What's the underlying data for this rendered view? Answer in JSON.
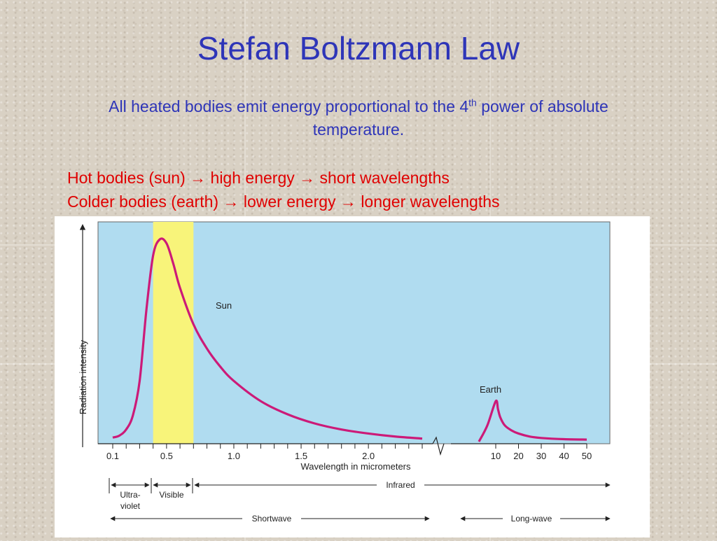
{
  "slide": {
    "title": "Stefan Boltzmann Law",
    "subtitle_pre": "All heated bodies emit energy proportional to the 4",
    "subtitle_sup": "th",
    "subtitle_post": " power of absolute temperature.",
    "bullets": [
      {
        "parts": [
          "Hot bodies (sun)",
          "high energy",
          "short wavelengths"
        ]
      },
      {
        "parts": [
          "Colder bodies (earth)",
          "lower energy",
          "longer wavelengths"
        ]
      }
    ],
    "arrow_glyph": "→"
  },
  "colors": {
    "title_text": "#2e35b8",
    "bullet_text": "#e00000",
    "plot_background": "#b0dcf0",
    "visible_band": "#f8f47a",
    "curve": "#cc1a78"
  },
  "chart_data": {
    "type": "line",
    "title": "",
    "xlabel": "Wavelength in micrometers",
    "ylabel": "Radiation intensity",
    "x_axis": "broken: 0.1–2.4 then 10–50",
    "grid": false,
    "shortwave_ticks": [
      "0.1",
      "0.5",
      "1.0",
      "1.5",
      "2.0"
    ],
    "longwave_ticks": [
      "10",
      "20",
      "30",
      "40",
      "50"
    ],
    "series": [
      {
        "name": "Sun",
        "x": [
          0.1,
          0.15,
          0.2,
          0.25,
          0.3,
          0.35,
          0.4,
          0.45,
          0.5,
          0.55,
          0.6,
          0.7,
          0.8,
          0.9,
          1.0,
          1.2,
          1.4,
          1.6,
          1.8,
          2.0,
          2.2,
          2.4
        ],
        "y": [
          0.02,
          0.03,
          0.06,
          0.13,
          0.3,
          0.65,
          0.92,
          1.0,
          0.98,
          0.88,
          0.76,
          0.58,
          0.46,
          0.37,
          0.3,
          0.2,
          0.135,
          0.09,
          0.06,
          0.04,
          0.025,
          0.015
        ]
      },
      {
        "name": "Earth",
        "x": [
          8,
          9,
          10,
          11,
          12,
          14,
          17,
          20,
          25,
          30,
          40,
          50
        ],
        "y": [
          0.0,
          0.08,
          0.2,
          0.16,
          0.12,
          0.08,
          0.055,
          0.04,
          0.025,
          0.018,
          0.012,
          0.01
        ]
      }
    ],
    "visible_band_um": [
      0.4,
      0.7
    ],
    "bands": [
      {
        "label": "Ultra-",
        "label2": "violet"
      },
      {
        "label": "Visible"
      },
      {
        "label": "Infrared"
      }
    ],
    "regions": [
      {
        "label": "Shortwave"
      },
      {
        "label": "Long-wave"
      }
    ]
  }
}
